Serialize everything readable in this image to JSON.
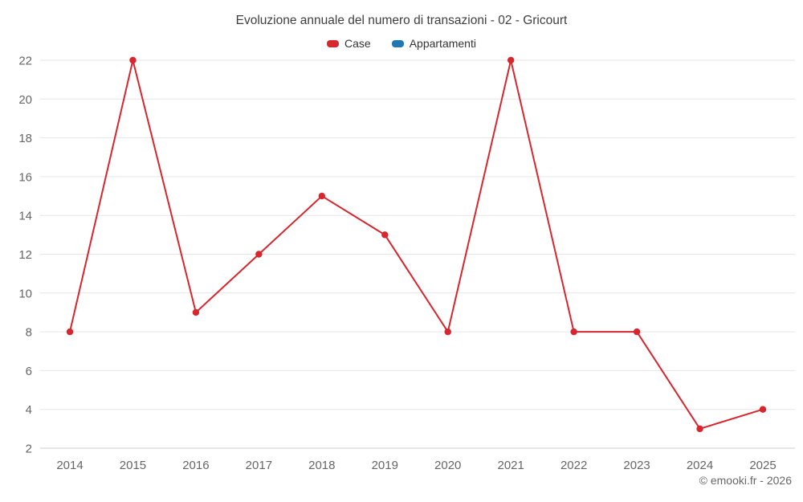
{
  "title": "Evoluzione annuale del numero di transazioni - 02 - Gricourt",
  "legend": {
    "items": [
      {
        "label": "Case",
        "color": "#d8262e"
      },
      {
        "label": "Appartamenti",
        "color": "#1f78b4"
      }
    ]
  },
  "credits": "© emooki.fr - 2026",
  "chart_data": {
    "type": "line",
    "title": "Evoluzione annuale del numero di transazioni - 02 - Gricourt",
    "categories": [
      "2014",
      "2015",
      "2016",
      "2017",
      "2018",
      "2019",
      "2020",
      "2021",
      "2022",
      "2023",
      "2024",
      "2025"
    ],
    "series": [
      {
        "name": "Case",
        "color": "#d8262e",
        "values": [
          8,
          22,
          9,
          12,
          15,
          13,
          8,
          22,
          8,
          8,
          3,
          4
        ]
      },
      {
        "name": "Appartamenti",
        "color": "#1f78b4",
        "values": []
      }
    ],
    "xlabel": "",
    "ylabel": "",
    "ylim": [
      2,
      22
    ],
    "y_ticks": [
      2,
      4,
      6,
      8,
      10,
      12,
      14,
      16,
      18,
      20,
      22
    ],
    "grid": "horizontal",
    "legend_position": "top",
    "axis_text_color": "#666666",
    "grid_color": "#e6e6e6",
    "axis_line_color": "#cccccc"
  }
}
